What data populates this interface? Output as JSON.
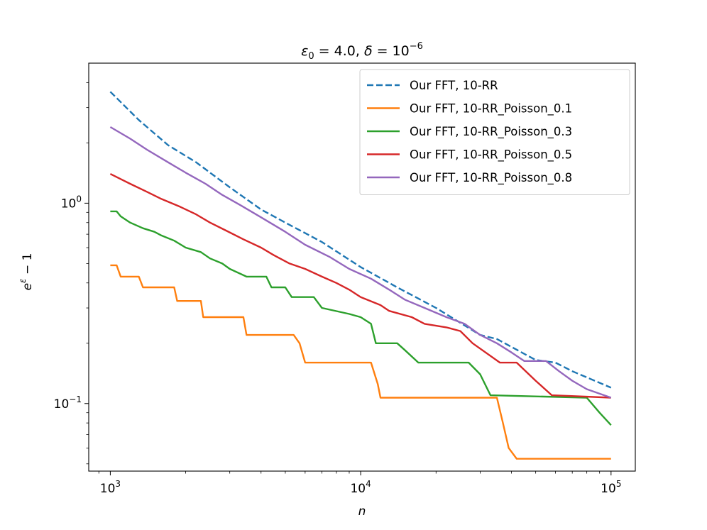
{
  "chart_data": {
    "type": "line",
    "title": "ε₀ = 4.0, δ = 10⁻⁶",
    "title_parts": {
      "eps_label": "ε",
      "eps_sub": "0",
      "eps_value": " = 4.0, ",
      "delta_label": "δ",
      "delta_value": " = 10",
      "delta_exp": "−6"
    },
    "xlabel": "n",
    "ylabel": "e^ε − 1",
    "ylabel_parts": {
      "base": "e",
      "exp": "ε",
      "rest": " − 1"
    },
    "x_scale": "log",
    "y_scale": "log",
    "xlim": [
      820,
      125000
    ],
    "ylim": [
      0.046,
      5.0
    ],
    "x_ticks": [
      {
        "value": 1000,
        "base": "10",
        "exp": "3"
      },
      {
        "value": 10000,
        "base": "10",
        "exp": "4"
      },
      {
        "value": 100000,
        "base": "10",
        "exp": "5"
      }
    ],
    "y_ticks": [
      {
        "value": 0.1,
        "base": "10",
        "exp": "−1"
      },
      {
        "value": 1,
        "base": "10",
        "exp": "0"
      }
    ],
    "legend_position": "top-right",
    "series": [
      {
        "name": "Our FFT, 10-RR",
        "color": "#1f77b4",
        "dashed": true,
        "points": [
          [
            1000,
            3.6
          ],
          [
            1300,
            2.6
          ],
          [
            1700,
            1.95
          ],
          [
            2200,
            1.6
          ],
          [
            3000,
            1.2
          ],
          [
            4000,
            0.93
          ],
          [
            5000,
            0.8
          ],
          [
            7000,
            0.64
          ],
          [
            10000,
            0.48
          ],
          [
            14000,
            0.38
          ],
          [
            20000,
            0.3
          ],
          [
            30000,
            0.22
          ],
          [
            35000,
            0.21
          ],
          [
            50000,
            0.165
          ],
          [
            60000,
            0.16
          ],
          [
            70000,
            0.145
          ],
          [
            100000,
            0.12
          ]
        ]
      },
      {
        "name": "Our FFT, 10-RR_Poisson_0.1",
        "color": "#ff7f0e",
        "dashed": false,
        "points": [
          [
            1000,
            0.49
          ],
          [
            1060,
            0.49
          ],
          [
            1100,
            0.43
          ],
          [
            1300,
            0.43
          ],
          [
            1350,
            0.38
          ],
          [
            1800,
            0.38
          ],
          [
            1850,
            0.325
          ],
          [
            2300,
            0.325
          ],
          [
            2350,
            0.27
          ],
          [
            3400,
            0.27
          ],
          [
            3500,
            0.22
          ],
          [
            5400,
            0.22
          ],
          [
            5700,
            0.2
          ],
          [
            6000,
            0.16
          ],
          [
            11000,
            0.16
          ],
          [
            11700,
            0.125
          ],
          [
            12000,
            0.107
          ],
          [
            35000,
            0.107
          ],
          [
            37000,
            0.08
          ],
          [
            39000,
            0.06
          ],
          [
            42000,
            0.053
          ],
          [
            100000,
            0.053
          ]
        ]
      },
      {
        "name": "Our FFT, 10-RR_Poisson_0.3",
        "color": "#2ca02c",
        "dashed": false,
        "points": [
          [
            1000,
            0.91
          ],
          [
            1060,
            0.91
          ],
          [
            1100,
            0.86
          ],
          [
            1200,
            0.8
          ],
          [
            1350,
            0.75
          ],
          [
            1500,
            0.72
          ],
          [
            1600,
            0.69
          ],
          [
            1800,
            0.65
          ],
          [
            2000,
            0.6
          ],
          [
            2300,
            0.57
          ],
          [
            2500,
            0.53
          ],
          [
            2800,
            0.5
          ],
          [
            3000,
            0.47
          ],
          [
            3500,
            0.43
          ],
          [
            4200,
            0.43
          ],
          [
            4400,
            0.38
          ],
          [
            5000,
            0.38
          ],
          [
            5300,
            0.34
          ],
          [
            6500,
            0.34
          ],
          [
            7000,
            0.3
          ],
          [
            9000,
            0.28
          ],
          [
            10000,
            0.27
          ],
          [
            11000,
            0.25
          ],
          [
            11500,
            0.2
          ],
          [
            14000,
            0.2
          ],
          [
            15000,
            0.185
          ],
          [
            17000,
            0.16
          ],
          [
            27000,
            0.16
          ],
          [
            30000,
            0.14
          ],
          [
            33000,
            0.11
          ],
          [
            80000,
            0.107
          ],
          [
            90000,
            0.09
          ],
          [
            100000,
            0.078
          ]
        ]
      },
      {
        "name": "Our FFT, 10-RR_Poisson_0.5",
        "color": "#d62728",
        "dashed": false,
        "points": [
          [
            1000,
            1.4
          ],
          [
            1200,
            1.25
          ],
          [
            1400,
            1.14
          ],
          [
            1600,
            1.05
          ],
          [
            1900,
            0.96
          ],
          [
            2200,
            0.88
          ],
          [
            2500,
            0.8
          ],
          [
            2900,
            0.73
          ],
          [
            3400,
            0.66
          ],
          [
            4000,
            0.6
          ],
          [
            4500,
            0.55
          ],
          [
            5200,
            0.5
          ],
          [
            6000,
            0.47
          ],
          [
            7000,
            0.43
          ],
          [
            8000,
            0.4
          ],
          [
            9000,
            0.37
          ],
          [
            10000,
            0.34
          ],
          [
            12000,
            0.31
          ],
          [
            13000,
            0.29
          ],
          [
            16000,
            0.27
          ],
          [
            18000,
            0.25
          ],
          [
            22000,
            0.24
          ],
          [
            25000,
            0.23
          ],
          [
            28000,
            0.2
          ],
          [
            36000,
            0.16
          ],
          [
            42000,
            0.16
          ],
          [
            50000,
            0.13
          ],
          [
            58000,
            0.11
          ],
          [
            100000,
            0.107
          ]
        ]
      },
      {
        "name": "Our FFT, 10-RR_Poisson_0.8",
        "color": "#9467bd",
        "dashed": false,
        "points": [
          [
            1000,
            2.4
          ],
          [
            1200,
            2.1
          ],
          [
            1400,
            1.85
          ],
          [
            1700,
            1.6
          ],
          [
            2000,
            1.42
          ],
          [
            2400,
            1.25
          ],
          [
            2800,
            1.1
          ],
          [
            3300,
            0.98
          ],
          [
            4000,
            0.85
          ],
          [
            5000,
            0.72
          ],
          [
            6000,
            0.62
          ],
          [
            7500,
            0.54
          ],
          [
            9000,
            0.47
          ],
          [
            11000,
            0.42
          ],
          [
            13000,
            0.37
          ],
          [
            15000,
            0.33
          ],
          [
            18000,
            0.3
          ],
          [
            22000,
            0.27
          ],
          [
            26000,
            0.25
          ],
          [
            30000,
            0.22
          ],
          [
            35000,
            0.2
          ],
          [
            40000,
            0.18
          ],
          [
            45000,
            0.163
          ],
          [
            55000,
            0.163
          ],
          [
            62000,
            0.145
          ],
          [
            70000,
            0.13
          ],
          [
            80000,
            0.118
          ],
          [
            100000,
            0.107
          ]
        ]
      }
    ]
  }
}
